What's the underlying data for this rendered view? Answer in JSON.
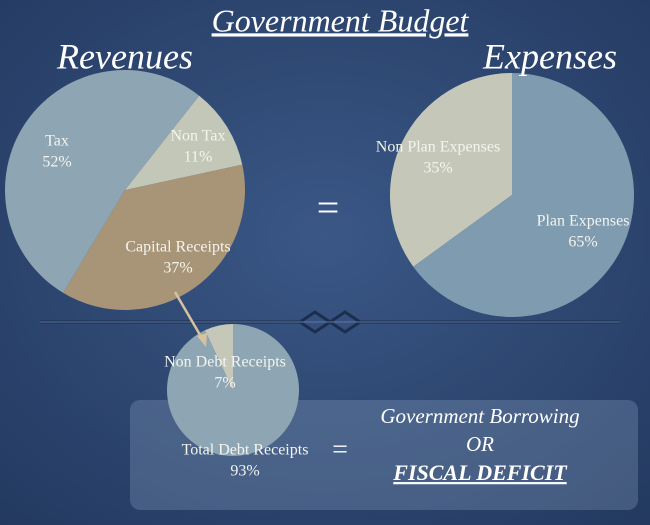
{
  "title": "Government Budget",
  "chart_data": [
    {
      "type": "pie",
      "title": "Revenues",
      "categories": [
        "Tax",
        "Non Tax",
        "Capital Receipts"
      ],
      "values": [
        52,
        11,
        37
      ],
      "value_labels": [
        "52%",
        "11%",
        "37%"
      ],
      "colors": [
        "#8ea5b3",
        "#c3c7b8",
        "#a89578"
      ]
    },
    {
      "type": "pie",
      "title": "Expenses",
      "categories": [
        "Non Plan Expenses",
        "Plan Expenses"
      ],
      "values": [
        35,
        65
      ],
      "value_labels": [
        "35%",
        "65%"
      ],
      "colors": [
        "#c5c8b9",
        "#7e9bb0"
      ]
    },
    {
      "type": "pie",
      "categories": [
        "Non Debt Receipts",
        "Total Debt Receipts"
      ],
      "values": [
        7,
        93
      ],
      "value_labels": [
        "7%",
        "93%"
      ],
      "colors": [
        "#c5c8b9",
        "#8ea5b3"
      ]
    }
  ],
  "equals": [
    "=",
    "="
  ],
  "conclusion": {
    "line1": "Government Borrowing",
    "line2": "OR",
    "line3": "FISCAL DEFICIT"
  }
}
